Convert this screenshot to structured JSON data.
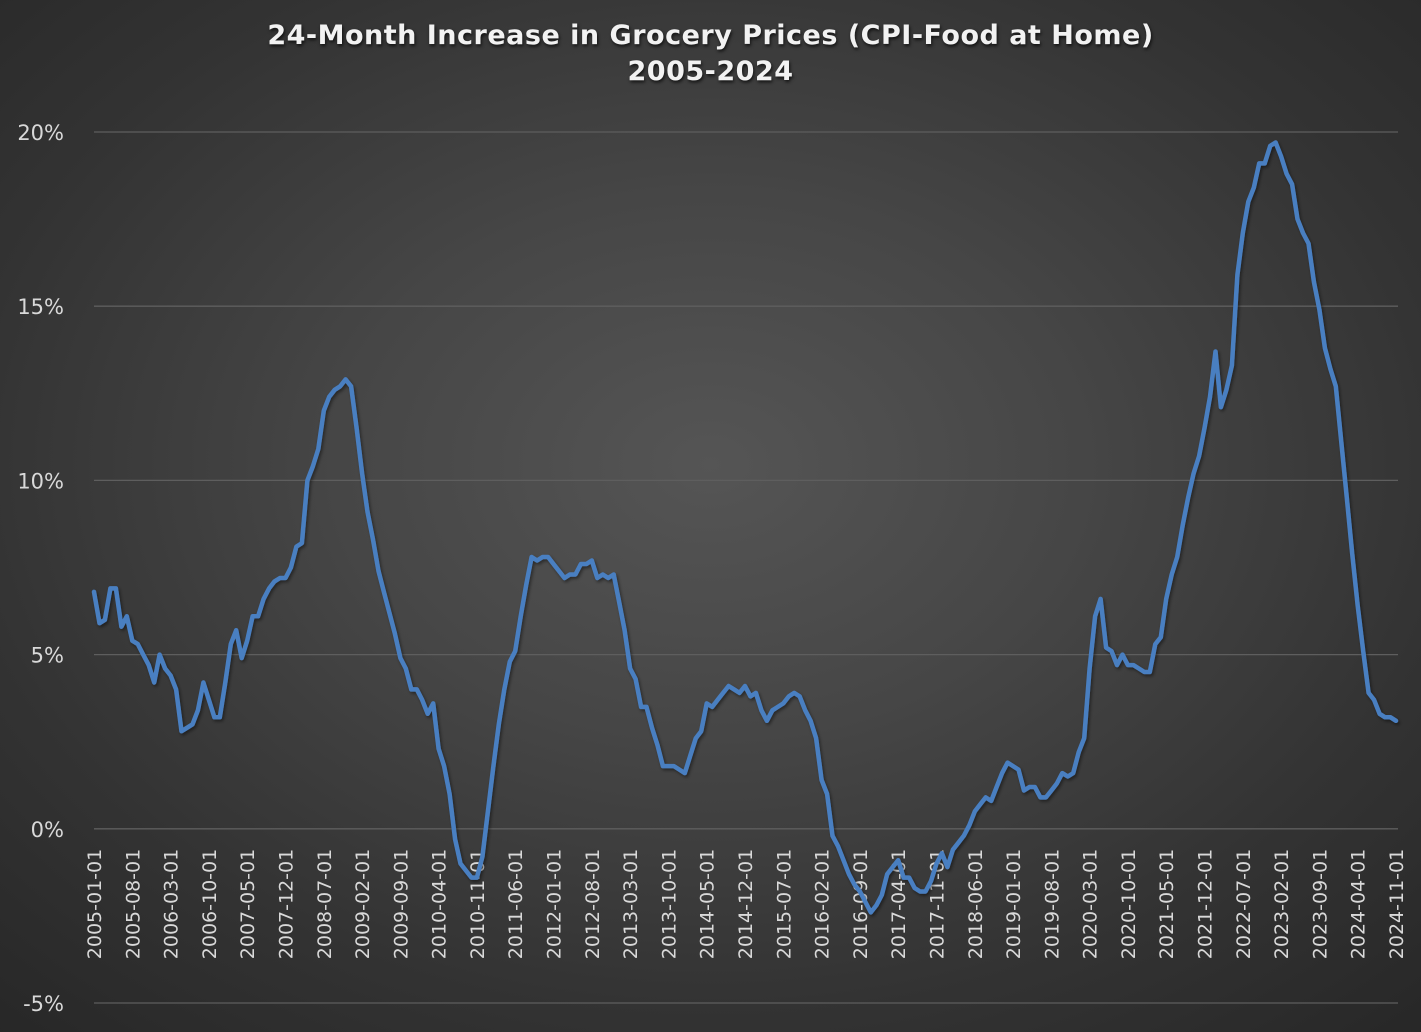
{
  "title": {
    "line1": "24-Month Increase in Grocery Prices (CPI-Food at Home)",
    "line2": "2005-2024"
  },
  "colors": {
    "line": "#4a7fc1",
    "grid": "#5e5e5e",
    "text": "#d9d9d9",
    "background_center": "#555555",
    "background_edge": "#272727"
  },
  "chart_data": {
    "type": "line",
    "title": "24-Month Increase in Grocery Prices (CPI-Food at Home) 2005-2024",
    "xlabel": "",
    "ylabel": "",
    "ylim": [
      -5,
      20
    ],
    "yticks": [
      "20%",
      "15%",
      "10%",
      "5%",
      "0%",
      "-5%"
    ],
    "ytick_values": [
      20,
      15,
      10,
      5,
      0,
      -5
    ],
    "grid": true,
    "legend": "none",
    "x_start": "2005-01-01",
    "x_end": "2024-11-01",
    "x_frequency": "monthly",
    "xtick_labels": [
      "2005-01-01",
      "2005-08-01",
      "2006-03-01",
      "2006-10-01",
      "2007-05-01",
      "2007-12-01",
      "2008-07-01",
      "2009-02-01",
      "2009-09-01",
      "2010-04-01",
      "2010-11-01",
      "2011-06-01",
      "2012-01-01",
      "2012-08-01",
      "2013-03-01",
      "2013-10-01",
      "2014-05-01",
      "2014-12-01",
      "2015-07-01",
      "2016-02-01",
      "2016-09-01",
      "2017-04-01",
      "2017-11-01",
      "2018-06-01",
      "2019-01-01",
      "2019-08-01",
      "2020-03-01",
      "2020-10-01",
      "2021-05-01",
      "2021-12-01",
      "2022-07-01",
      "2023-02-01",
      "2023-09-01",
      "2024-04-01",
      "2024-11-01"
    ],
    "series": [
      {
        "name": "24-Month Increase (CPI-Food at Home)",
        "unit": "%",
        "key_points": [
          [
            "2005-01",
            6.8
          ],
          [
            "2005-02",
            5.9
          ],
          [
            "2005-03",
            6.0
          ],
          [
            "2005-04",
            6.9
          ],
          [
            "2005-05",
            6.9
          ],
          [
            "2005-06",
            5.8
          ],
          [
            "2005-07",
            6.1
          ],
          [
            "2005-08",
            5.4
          ],
          [
            "2005-09",
            5.3
          ],
          [
            "2005-10",
            5.0
          ],
          [
            "2005-11",
            4.7
          ],
          [
            "2005-12",
            4.2
          ],
          [
            "2006-01",
            5.0
          ],
          [
            "2006-02",
            4.6
          ],
          [
            "2006-03",
            4.4
          ],
          [
            "2006-04",
            4.0
          ],
          [
            "2006-05",
            2.8
          ],
          [
            "2006-06",
            2.9
          ],
          [
            "2006-07",
            3.0
          ],
          [
            "2006-08",
            3.4
          ],
          [
            "2006-09",
            4.2
          ],
          [
            "2006-10",
            3.7
          ],
          [
            "2006-11",
            3.2
          ],
          [
            "2006-12",
            3.2
          ],
          [
            "2007-01",
            4.2
          ],
          [
            "2007-02",
            5.3
          ],
          [
            "2007-03",
            5.7
          ],
          [
            "2007-04",
            4.9
          ],
          [
            "2007-05",
            5.4
          ],
          [
            "2007-06",
            6.1
          ],
          [
            "2007-07",
            6.1
          ],
          [
            "2007-08",
            6.6
          ],
          [
            "2007-09",
            6.9
          ],
          [
            "2007-10",
            7.1
          ],
          [
            "2007-11",
            7.2
          ],
          [
            "2007-12",
            7.2
          ],
          [
            "2008-01",
            7.5
          ],
          [
            "2008-02",
            8.1
          ],
          [
            "2008-03",
            8.2
          ],
          [
            "2008-04",
            10.0
          ],
          [
            "2008-05",
            10.4
          ],
          [
            "2008-06",
            10.9
          ],
          [
            "2008-07",
            12.0
          ],
          [
            "2008-08",
            12.4
          ],
          [
            "2008-09",
            12.6
          ],
          [
            "2008-10",
            12.7
          ],
          [
            "2008-11",
            12.9
          ],
          [
            "2008-12",
            12.7
          ],
          [
            "2009-01",
            11.5
          ],
          [
            "2009-02",
            10.2
          ],
          [
            "2009-03",
            9.1
          ],
          [
            "2009-04",
            8.3
          ],
          [
            "2009-05",
            7.4
          ],
          [
            "2009-06",
            6.8
          ],
          [
            "2009-07",
            6.2
          ],
          [
            "2009-08",
            5.6
          ],
          [
            "2009-09",
            4.9
          ],
          [
            "2009-10",
            4.6
          ],
          [
            "2009-11",
            4.0
          ],
          [
            "2009-12",
            4.0
          ],
          [
            "2010-01",
            3.7
          ],
          [
            "2010-02",
            3.3
          ],
          [
            "2010-03",
            3.6
          ],
          [
            "2010-04",
            2.3
          ],
          [
            "2010-05",
            1.8
          ],
          [
            "2010-06",
            1.0
          ],
          [
            "2010-07",
            -0.3
          ],
          [
            "2010-08",
            -1.0
          ],
          [
            "2010-09",
            -1.2
          ],
          [
            "2010-10",
            -1.4
          ],
          [
            "2010-11",
            -1.4
          ],
          [
            "2010-12",
            -0.8
          ],
          [
            "2011-01",
            0.5
          ],
          [
            "2011-02",
            1.8
          ],
          [
            "2011-03",
            3.0
          ],
          [
            "2011-04",
            4.0
          ],
          [
            "2011-05",
            4.8
          ],
          [
            "2011-06",
            5.1
          ],
          [
            "2011-07",
            6.1
          ],
          [
            "2011-08",
            7.0
          ],
          [
            "2011-09",
            7.8
          ],
          [
            "2011-10",
            7.7
          ],
          [
            "2011-11",
            7.8
          ],
          [
            "2011-12",
            7.8
          ],
          [
            "2012-01",
            7.6
          ],
          [
            "2012-02",
            7.4
          ],
          [
            "2012-03",
            7.2
          ],
          [
            "2012-04",
            7.3
          ],
          [
            "2012-05",
            7.3
          ],
          [
            "2012-06",
            7.6
          ],
          [
            "2012-07",
            7.6
          ],
          [
            "2012-08",
            7.7
          ],
          [
            "2012-09",
            7.2
          ],
          [
            "2012-10",
            7.3
          ],
          [
            "2012-11",
            7.2
          ],
          [
            "2012-12",
            7.3
          ],
          [
            "2013-01",
            6.5
          ],
          [
            "2013-02",
            5.7
          ],
          [
            "2013-03",
            4.6
          ],
          [
            "2013-04",
            4.3
          ],
          [
            "2013-05",
            3.5
          ],
          [
            "2013-06",
            3.5
          ],
          [
            "2013-07",
            2.9
          ],
          [
            "2013-08",
            2.4
          ],
          [
            "2013-09",
            1.8
          ],
          [
            "2013-10",
            1.8
          ],
          [
            "2013-11",
            1.8
          ],
          [
            "2013-12",
            1.7
          ],
          [
            "2014-01",
            1.6
          ],
          [
            "2014-02",
            2.1
          ],
          [
            "2014-03",
            2.6
          ],
          [
            "2014-04",
            2.8
          ],
          [
            "2014-05",
            3.6
          ],
          [
            "2014-06",
            3.5
          ],
          [
            "2014-07",
            3.7
          ],
          [
            "2014-08",
            3.9
          ],
          [
            "2014-09",
            4.1
          ],
          [
            "2014-10",
            4.0
          ],
          [
            "2014-11",
            3.9
          ],
          [
            "2014-12",
            4.1
          ],
          [
            "2015-01",
            3.8
          ],
          [
            "2015-02",
            3.9
          ],
          [
            "2015-03",
            3.4
          ],
          [
            "2015-04",
            3.1
          ],
          [
            "2015-05",
            3.4
          ],
          [
            "2015-06",
            3.5
          ],
          [
            "2015-07",
            3.6
          ],
          [
            "2015-08",
            3.8
          ],
          [
            "2015-09",
            3.9
          ],
          [
            "2015-10",
            3.8
          ],
          [
            "2015-11",
            3.4
          ],
          [
            "2015-12",
            3.1
          ],
          [
            "2016-01",
            2.6
          ],
          [
            "2016-02",
            1.4
          ],
          [
            "2016-03",
            1.0
          ],
          [
            "2016-04",
            -0.2
          ],
          [
            "2016-05",
            -0.5
          ],
          [
            "2016-06",
            -0.9
          ],
          [
            "2016-07",
            -1.3
          ],
          [
            "2016-08",
            -1.6
          ],
          [
            "2016-09",
            -1.8
          ],
          [
            "2016-10",
            -2.1
          ],
          [
            "2016-11",
            -2.4
          ],
          [
            "2016-12",
            -2.2
          ],
          [
            "2017-01",
            -1.9
          ],
          [
            "2017-02",
            -1.3
          ],
          [
            "2017-03",
            -1.1
          ],
          [
            "2017-04",
            -0.9
          ],
          [
            "2017-05",
            -1.4
          ],
          [
            "2017-06",
            -1.4
          ],
          [
            "2017-07",
            -1.7
          ],
          [
            "2017-08",
            -1.8
          ],
          [
            "2017-09",
            -1.8
          ],
          [
            "2017-10",
            -1.5
          ],
          [
            "2017-11",
            -1.0
          ],
          [
            "2017-12",
            -0.7
          ],
          [
            "2018-01",
            -1.1
          ],
          [
            "2018-02",
            -0.6
          ],
          [
            "2018-03",
            -0.4
          ],
          [
            "2018-04",
            -0.2
          ],
          [
            "2018-05",
            0.1
          ],
          [
            "2018-06",
            0.5
          ],
          [
            "2018-07",
            0.7
          ],
          [
            "2018-08",
            0.9
          ],
          [
            "2018-09",
            0.8
          ],
          [
            "2018-10",
            1.2
          ],
          [
            "2018-11",
            1.6
          ],
          [
            "2018-12",
            1.9
          ],
          [
            "2019-01",
            1.8
          ],
          [
            "2019-02",
            1.7
          ],
          [
            "2019-03",
            1.1
          ],
          [
            "2019-04",
            1.2
          ],
          [
            "2019-05",
            1.2
          ],
          [
            "2019-06",
            0.9
          ],
          [
            "2019-07",
            0.9
          ],
          [
            "2019-08",
            1.1
          ],
          [
            "2019-09",
            1.3
          ],
          [
            "2019-10",
            1.6
          ],
          [
            "2019-11",
            1.5
          ],
          [
            "2019-12",
            1.6
          ],
          [
            "2020-01",
            2.2
          ],
          [
            "2020-02",
            2.6
          ],
          [
            "2020-03",
            4.6
          ],
          [
            "2020-04",
            6.1
          ],
          [
            "2020-05",
            6.6
          ],
          [
            "2020-06",
            5.2
          ],
          [
            "2020-07",
            5.1
          ],
          [
            "2020-08",
            4.7
          ],
          [
            "2020-09",
            5.0
          ],
          [
            "2020-10",
            4.7
          ],
          [
            "2020-11",
            4.7
          ],
          [
            "2020-12",
            4.6
          ],
          [
            "2021-01",
            4.5
          ],
          [
            "2021-02",
            4.5
          ],
          [
            "2021-03",
            5.3
          ],
          [
            "2021-04",
            5.5
          ],
          [
            "2021-05",
            6.6
          ],
          [
            "2021-06",
            7.3
          ],
          [
            "2021-07",
            7.8
          ],
          [
            "2021-08",
            8.7
          ],
          [
            "2021-09",
            9.5
          ],
          [
            "2021-10",
            10.2
          ],
          [
            "2021-11",
            10.7
          ],
          [
            "2021-12",
            11.5
          ],
          [
            "2022-01",
            12.4
          ],
          [
            "2022-02",
            13.7
          ],
          [
            "2022-03",
            12.1
          ],
          [
            "2022-04",
            12.6
          ],
          [
            "2022-05",
            13.3
          ],
          [
            "2022-06",
            15.9
          ],
          [
            "2022-07",
            17.1
          ],
          [
            "2022-08",
            18.0
          ],
          [
            "2022-09",
            18.4
          ],
          [
            "2022-10",
            19.1
          ],
          [
            "2022-11",
            19.1
          ],
          [
            "2022-12",
            19.6
          ],
          [
            "2023-01",
            19.7
          ],
          [
            "2023-02",
            19.3
          ],
          [
            "2023-03",
            18.8
          ],
          [
            "2023-04",
            18.5
          ],
          [
            "2023-05",
            17.5
          ],
          [
            "2023-06",
            17.1
          ],
          [
            "2023-07",
            16.8
          ],
          [
            "2023-08",
            15.7
          ],
          [
            "2023-09",
            14.9
          ],
          [
            "2023-10",
            13.8
          ],
          [
            "2023-11",
            13.2
          ],
          [
            "2023-12",
            12.7
          ],
          [
            "2024-01",
            11.1
          ],
          [
            "2024-02",
            9.5
          ],
          [
            "2024-03",
            7.9
          ],
          [
            "2024-04",
            6.4
          ],
          [
            "2024-05",
            5.1
          ],
          [
            "2024-06",
            3.9
          ],
          [
            "2024-07",
            3.7
          ],
          [
            "2024-08",
            3.3
          ],
          [
            "2024-09",
            3.2
          ],
          [
            "2024-10",
            3.2
          ],
          [
            "2024-11",
            3.1
          ]
        ]
      }
    ]
  }
}
